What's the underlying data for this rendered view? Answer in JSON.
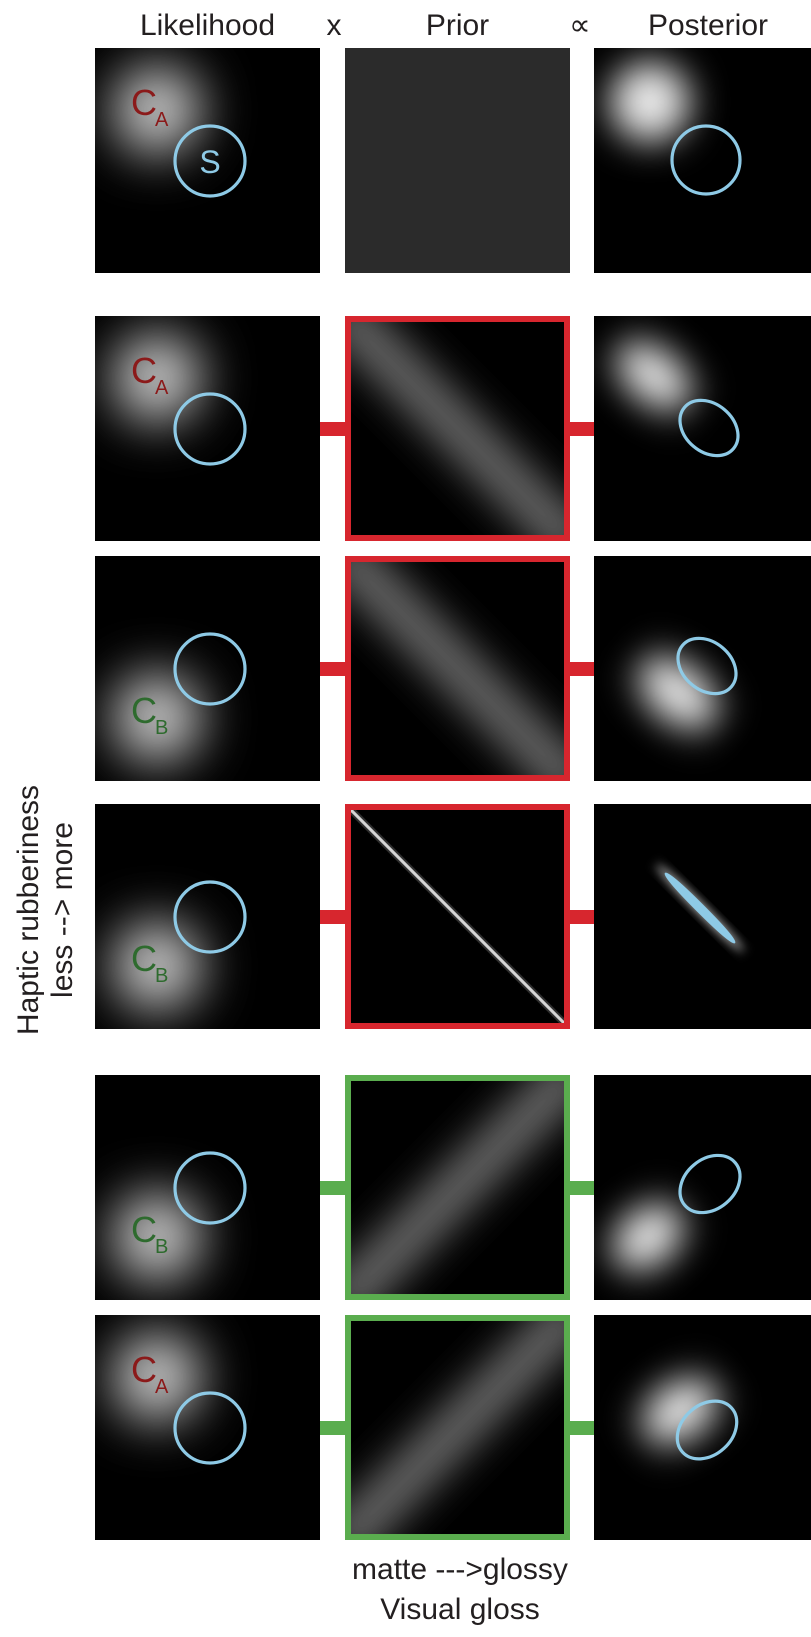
{
  "headers": {
    "likelihood": "Likelihood",
    "times": "x",
    "prior": "Prior",
    "proportional": "∝",
    "posterior": "Posterior"
  },
  "y_axis": {
    "title": "Haptic rubberiness",
    "subtitle": "less  --> more"
  },
  "x_axis": {
    "scale": "matte --->glossy",
    "title": "Visual gloss"
  },
  "colors": {
    "stimulus_circle": "#8ecae6",
    "cue_a": "#8b1a1a",
    "cue_b": "#2e6b2e",
    "rubbery_prior_frame": "#d7262e",
    "glossy_prior_frame": "#5aad4e",
    "flat_prior": "#2b2b2b"
  },
  "rows": [
    {
      "cue": "A",
      "cue_letter": "C",
      "cue_sub": "A",
      "stimulus_label": "S",
      "prior": "flat",
      "prior_frame": "none"
    },
    {
      "cue": "A",
      "cue_letter": "C",
      "cue_sub": "A",
      "stimulus_label": "",
      "prior": "negative-broad",
      "prior_frame": "red"
    },
    {
      "cue": "B",
      "cue_letter": "C",
      "cue_sub": "B",
      "stimulus_label": "",
      "prior": "negative-broad",
      "prior_frame": "red"
    },
    {
      "cue": "B",
      "cue_letter": "C",
      "cue_sub": "B",
      "stimulus_label": "",
      "prior": "negative-narrow",
      "prior_frame": "red"
    },
    {
      "cue": "B",
      "cue_letter": "C",
      "cue_sub": "B",
      "stimulus_label": "",
      "prior": "positive-broad",
      "prior_frame": "green"
    },
    {
      "cue": "A",
      "cue_letter": "C",
      "cue_sub": "A",
      "stimulus_label": "",
      "prior": "positive-broad",
      "prior_frame": "green"
    }
  ]
}
